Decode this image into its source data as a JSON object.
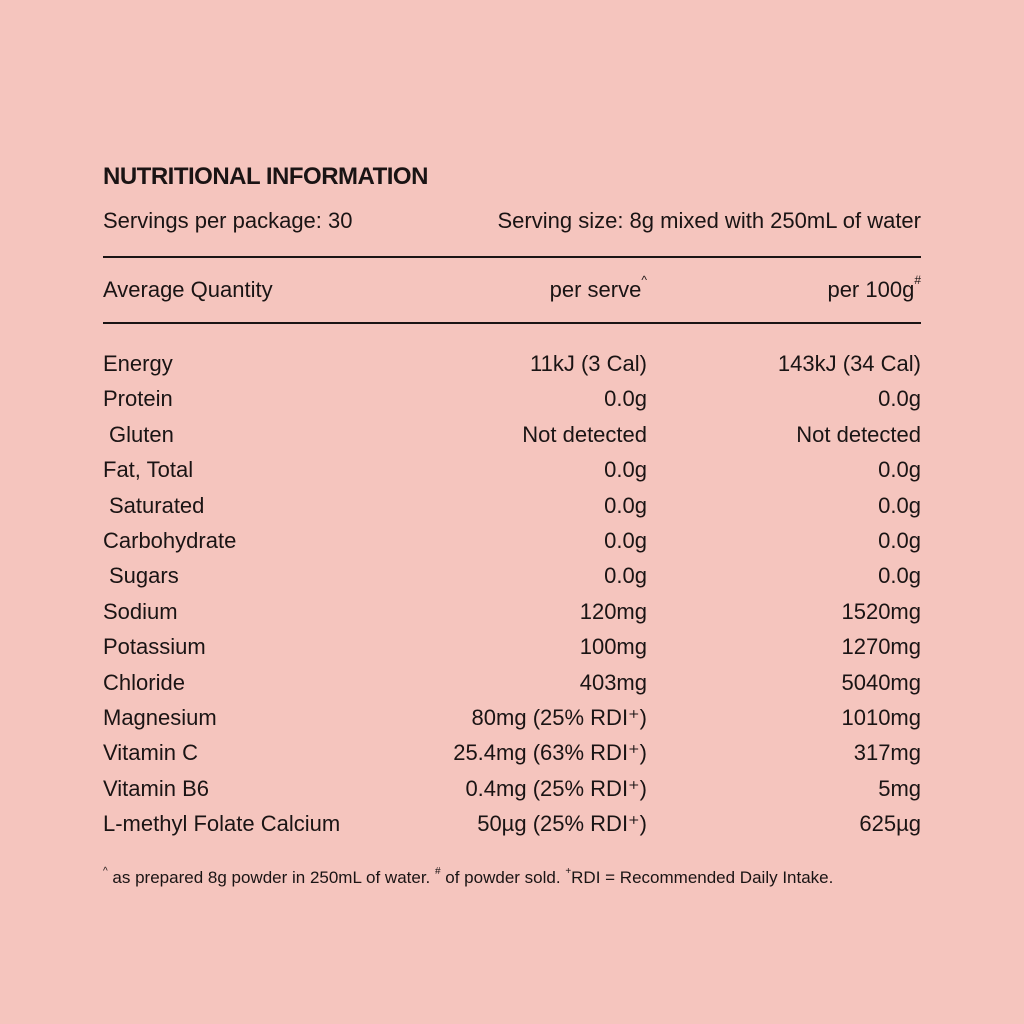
{
  "title": "NUTRITIONAL INFORMATION",
  "servings_per_package": "Servings per package: 30",
  "serving_size": "Serving size: 8g mixed with 250mL of water",
  "header": {
    "col1": "Average Quantity",
    "col2": "per serve",
    "col2_sup": "^",
    "col3": "per 100g",
    "col3_sup": "#"
  },
  "rows": [
    {
      "label": "Energy",
      "serve": "11kJ (3 Cal)",
      "per100": "143kJ (34 Cal)",
      "indent": false
    },
    {
      "label": "Protein",
      "serve": "0.0g",
      "per100": "0.0g",
      "indent": false
    },
    {
      "label": "Gluten",
      "serve": "Not detected",
      "per100": "Not detected",
      "indent": true
    },
    {
      "label": "Fat, Total",
      "serve": "0.0g",
      "per100": "0.0g",
      "indent": false
    },
    {
      "label": "Saturated",
      "serve": "0.0g",
      "per100": "0.0g",
      "indent": true
    },
    {
      "label": "Carbohydrate",
      "serve": "0.0g",
      "per100": "0.0g",
      "indent": false
    },
    {
      "label": "Sugars",
      "serve": "0.0g",
      "per100": "0.0g",
      "indent": true
    },
    {
      "label": "Sodium",
      "serve": "120mg",
      "per100": "1520mg",
      "indent": false
    },
    {
      "label": "Potassium",
      "serve": "100mg",
      "per100": "1270mg",
      "indent": false
    },
    {
      "label": "Chloride",
      "serve": "403mg",
      "per100": "5040mg",
      "indent": false
    },
    {
      "label": "Magnesium",
      "serve": "80mg (25% RDI⁺)",
      "per100": "1010mg",
      "indent": false
    },
    {
      "label": "Vitamin C",
      "serve": "25.4mg (63% RDI⁺)",
      "per100": "317mg",
      "indent": false
    },
    {
      "label": "Vitamin B6",
      "serve": "0.4mg (25% RDI⁺)",
      "per100": "5mg",
      "indent": false
    },
    {
      "label": "L-methyl Folate Calcium",
      "serve": "50µg (25% RDI⁺)",
      "per100": "625µg",
      "indent": false
    }
  ],
  "footnote": {
    "sup1": "^",
    "text1": " as prepared 8g powder in 250mL of water. ",
    "sup2": "#",
    "text2": " of powder sold. ",
    "sup3": "+",
    "text3": "RDI = Recommended Daily Intake."
  },
  "colors": {
    "background": "#f5c5be",
    "text": "#1a1414"
  }
}
